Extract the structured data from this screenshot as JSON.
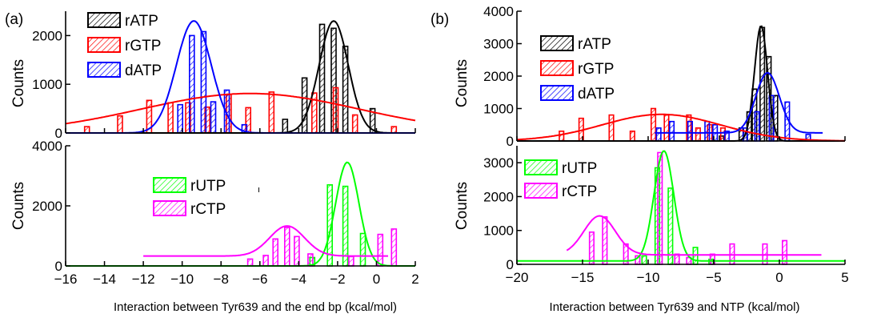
{
  "chart_data": [
    {
      "type": "bar",
      "panel_label": "(a)",
      "xlabel": "Interaction between Tyr639 and the end bp (kcal/mol)",
      "xlim": [
        -16,
        2
      ],
      "xticks": [
        -16,
        -14,
        -12,
        -10,
        -8,
        -6,
        -4,
        -2,
        0,
        2
      ],
      "subplots": [
        {
          "ylabel": "Counts",
          "ylim": [
            0,
            2500
          ],
          "yticks": [
            0,
            1000,
            2000
          ],
          "legend": "top-left",
          "series": [
            {
              "name": "rATP",
              "color": "#000000",
              "bars": [
                [
                  -4.7,
                  280
                ],
                [
                  -3.7,
                  1130
                ],
                [
                  -2.8,
                  2230
                ],
                [
                  -2.2,
                  2150
                ],
                [
                  -1.6,
                  1780
                ],
                [
                  -0.2,
                  500
                ]
              ],
              "fit": {
                "mean": -2.2,
                "sd": 0.75,
                "amp": 2300
              }
            },
            {
              "name": "rGTP",
              "color": "#ff0000",
              "bars": [
                [
                  -14.9,
                  130
                ],
                [
                  -13.2,
                  350
                ],
                [
                  -11.7,
                  670
                ],
                [
                  -10.6,
                  620
                ],
                [
                  -9.7,
                  620
                ],
                [
                  -8.7,
                  530
                ],
                [
                  -7.6,
                  790
                ],
                [
                  -6.6,
                  520
                ],
                [
                  -5.4,
                  840
                ],
                [
                  -3.2,
                  820
                ],
                [
                  -2.1,
                  930
                ],
                [
                  -1.1,
                  370
                ],
                [
                  0.9,
                  130
                ]
              ],
              "fit": {
                "mean": -6.5,
                "sd": 5.6,
                "amp": 810
              }
            },
            {
              "name": "dATP",
              "color": "#0000ff",
              "bars": [
                [
                  -10.1,
                  580
                ],
                [
                  -9.5,
                  2000
                ],
                [
                  -8.9,
                  2080
                ],
                [
                  -8.4,
                  640
                ],
                [
                  -7.7,
                  880
                ],
                [
                  -6.8,
                  170
                ]
              ],
              "fit": {
                "mean": -9.4,
                "sd": 0.9,
                "amp": 2300
              }
            }
          ]
        },
        {
          "ylabel": "Counts",
          "ylim": [
            0,
            4000
          ],
          "yticks": [
            0,
            2000,
            4000
          ],
          "legend": "center",
          "series": [
            {
              "name": "rUTP",
              "color": "#00ff00",
              "bars": [
                [
                  -3.3,
                  280
                ],
                [
                  -2.4,
                  2700
                ],
                [
                  -1.6,
                  2650
                ],
                [
                  -0.7,
                  1080
                ]
              ],
              "fit": {
                "mean": -1.5,
                "sd": 0.6,
                "amp": 3450
              }
            },
            {
              "name": "rCTP",
              "color": "#ff00ff",
              "bars": [
                [
                  -6.5,
                  230
                ],
                [
                  -5.7,
                  350
                ],
                [
                  -5.2,
                  900
                ],
                [
                  -4.6,
                  1280
                ],
                [
                  -4.1,
                  980
                ],
                [
                  -3.4,
                  400
                ],
                [
                  -1.3,
                  310
                ],
                [
                  0.2,
                  1050
                ],
                [
                  0.9,
                  1230
                ]
              ],
              "fit": {
                "mean": -4.6,
                "sd": 0.9,
                "amp": 1000,
                "base": 330,
                "range": [
                  -12,
                  0.6
                ]
              }
            }
          ]
        }
      ]
    },
    {
      "type": "bar",
      "panel_label": "(b)",
      "xlabel": "Interaction between Tyr639 and NTP (kcal/mol)",
      "xlim": [
        -20,
        5
      ],
      "xticks": [
        -20,
        -15,
        -10,
        -5,
        0,
        5
      ],
      "subplots": [
        {
          "ylabel": "Counts",
          "ylim": [
            0,
            4000
          ],
          "yticks": [
            0,
            1000,
            2000,
            3000,
            4000
          ],
          "legend": "top-center",
          "series": [
            {
              "name": "rATP",
              "color": "#000000",
              "bars": [
                [
                  -4.4,
                  150
                ],
                [
                  -2.9,
                  400
                ],
                [
                  -2.3,
                  900
                ],
                [
                  -1.9,
                  1600
                ],
                [
                  -1.3,
                  3500
                ],
                [
                  -0.8,
                  2600
                ],
                [
                  -0.3,
                  1400
                ]
              ],
              "fit": {
                "mean": -1.4,
                "sd": 0.5,
                "amp": 3550
              }
            },
            {
              "name": "rGTP",
              "color": "#ff0000",
              "bars": [
                [
                  -16.6,
                  300
                ],
                [
                  -15.1,
                  700
                ],
                [
                  -12.8,
                  800
                ],
                [
                  -11.2,
                  300
                ],
                [
                  -9.6,
                  1000
                ],
                [
                  -8.6,
                  800
                ],
                [
                  -6.9,
                  800
                ],
                [
                  -6.2,
                  400
                ],
                [
                  -5.3,
                  500
                ],
                [
                  -4.3,
                  400
                ]
              ],
              "fit": {
                "mean": -9,
                "sd": 4.5,
                "amp": 820
              }
            },
            {
              "name": "dATP",
              "color": "#0000ff",
              "bars": [
                [
                  -9.2,
                  400
                ],
                [
                  -8.2,
                  600
                ],
                [
                  -6.8,
                  600
                ],
                [
                  -5.5,
                  600
                ],
                [
                  -4.9,
                  500
                ],
                [
                  -4.0,
                  300
                ],
                [
                  -2.6,
                  400
                ],
                [
                  -1.7,
                  900
                ],
                [
                  -0.6,
                  1400
                ],
                [
                  0.6,
                  1200
                ],
                [
                  2.2,
                  200
                ]
              ],
              "fit": {
                "mean": -0.9,
                "sd": 0.9,
                "amp": 1850,
                "base": 250,
                "range": [
                  -9.5,
                  3.3
                ]
              }
            }
          ]
        },
        {
          "ylabel": "Counts",
          "ylim": [
            0,
            3500
          ],
          "yticks": [
            0,
            1000,
            2000,
            3000
          ],
          "legend": "top-left",
          "series": [
            {
              "name": "rUTP",
              "color": "#00ff00",
              "bars": [
                [
                  -10.3,
                  250
                ],
                [
                  -9.3,
                  2850
                ],
                [
                  -8.3,
                  2250
                ],
                [
                  -6.4,
                  500
                ],
                [
                  -5.2,
                  150
                ]
              ],
              "fit": {
                "mean": -8.8,
                "sd": 0.75,
                "amp": 3250,
                "base": 100
              }
            },
            {
              "name": "rCTP",
              "color": "#ff00ff",
              "bars": [
                [
                  -14.3,
                  950
                ],
                [
                  -13.3,
                  1400
                ],
                [
                  -11.7,
                  600
                ],
                [
                  -10.8,
                  250
                ],
                [
                  -9.1,
                  3300
                ],
                [
                  -7.8,
                  300
                ],
                [
                  -6.9,
                  200
                ],
                [
                  -5.1,
                  300
                ],
                [
                  -3.6,
                  600
                ],
                [
                  -1.1,
                  600
                ],
                [
                  0.4,
                  700
                ]
              ],
              "fit": {
                "mean": -13.7,
                "sd": 1.2,
                "amp": 1150,
                "base": 280,
                "range": [
                  -16.2,
                  3.2
                ]
              }
            }
          ]
        }
      ]
    }
  ],
  "stray_mark": "ı"
}
